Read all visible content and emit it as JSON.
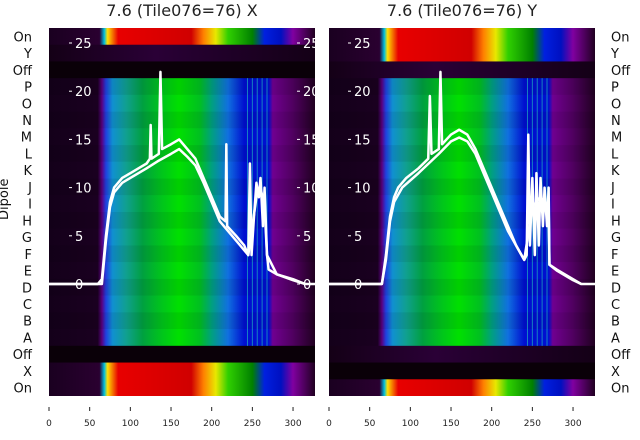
{
  "chart_data": {
    "type": "heatmap",
    "ylabel": "Dipole",
    "row_labels": [
      "On",
      "Y",
      "Off",
      "P",
      "O",
      "N",
      "M",
      "L",
      "K",
      "J",
      "I",
      "H",
      "G",
      "F",
      "E",
      "D",
      "C",
      "B",
      "A",
      "Off",
      "X",
      "On"
    ],
    "x_ticks": [
      "0",
      "50",
      "100",
      "150",
      "200",
      "250",
      "300"
    ],
    "x_tick_values": [
      0,
      50,
      100,
      150,
      200,
      250,
      300
    ],
    "xlim": [
      0,
      327
    ],
    "y_ticks": [
      "0",
      "5",
      "10",
      "15",
      "20",
      "25"
    ],
    "y_tick_values": [
      0,
      5,
      10,
      15,
      20,
      25
    ],
    "panels": [
      {
        "title": "7.6 (Tile076=76) X",
        "row_types": [
          "bright",
          "dark",
          "black",
          "main",
          "main",
          "main",
          "main",
          "main",
          "main",
          "main",
          "main",
          "main",
          "main",
          "main",
          "main",
          "main",
          "main",
          "main",
          "main",
          "black",
          "bright",
          "bright"
        ],
        "series": [
          {
            "name": "trace-1",
            "points": [
              [
                0,
                0
              ],
              [
                60,
                0
              ],
              [
                65,
                0.5
              ],
              [
                70,
                5
              ],
              [
                75,
                8.5
              ],
              [
                80,
                10
              ],
              [
                90,
                11
              ],
              [
                100,
                11.5
              ],
              [
                110,
                12
              ],
              [
                120,
                12.5
              ],
              [
                124,
                13
              ],
              [
                125,
                16.5
              ],
              [
                126,
                13
              ],
              [
                135,
                13.5
              ],
              [
                137,
                22
              ],
              [
                139,
                14
              ],
              [
                150,
                14.5
              ],
              [
                160,
                15
              ],
              [
                170,
                14
              ],
              [
                180,
                13
              ],
              [
                190,
                11
              ],
              [
                200,
                9
              ],
              [
                210,
                7
              ],
              [
                217,
                6.5
              ],
              [
                218,
                14.5
              ],
              [
                219,
                6
              ],
              [
                230,
                5
              ],
              [
                240,
                4
              ],
              [
                245,
                3
              ],
              [
                247,
                12.5
              ],
              [
                249,
                3
              ],
              [
                252,
                7
              ],
              [
                255,
                10.5
              ],
              [
                258,
                9
              ],
              [
                260,
                11
              ],
              [
                263,
                6
              ],
              [
                265,
                10
              ],
              [
                268,
                3
              ],
              [
                270,
                1.5
              ],
              [
                280,
                1
              ],
              [
                300,
                0.5
              ],
              [
                315,
                0
              ],
              [
                327,
                0
              ]
            ]
          },
          {
            "name": "trace-2",
            "points": [
              [
                0,
                0
              ],
              [
                65,
                0
              ],
              [
                70,
                4.5
              ],
              [
                75,
                8
              ],
              [
                80,
                9.5
              ],
              [
                90,
                10.5
              ],
              [
                100,
                11
              ],
              [
                120,
                12
              ],
              [
                135,
                12.8
              ],
              [
                150,
                13.5
              ],
              [
                160,
                14
              ],
              [
                170,
                13.2
              ],
              [
                180,
                12.3
              ],
              [
                190,
                10.5
              ],
              [
                200,
                8.5
              ],
              [
                210,
                6.5
              ],
              [
                230,
                4.5
              ],
              [
                245,
                3
              ],
              [
                250,
                6
              ],
              [
                255,
                9
              ],
              [
                260,
                10
              ],
              [
                265,
                8
              ],
              [
                268,
                3
              ],
              [
                280,
                1
              ],
              [
                300,
                0.4
              ],
              [
                315,
                0
              ]
            ]
          }
        ]
      },
      {
        "title": "7.6 (Tile076=76) Y",
        "row_types": [
          "bright",
          "bright",
          "dark",
          "main",
          "main",
          "main",
          "main",
          "main",
          "main",
          "main",
          "main",
          "main",
          "main",
          "main",
          "main",
          "main",
          "main",
          "main",
          "main",
          "dark",
          "black",
          "bright"
        ],
        "series": [
          {
            "name": "trace-1",
            "points": [
              [
                0,
                0
              ],
              [
                65,
                0
              ],
              [
                70,
                3
              ],
              [
                75,
                7
              ],
              [
                80,
                9
              ],
              [
                85,
                10
              ],
              [
                95,
                11
              ],
              [
                110,
                12
              ],
              [
                122,
                13
              ],
              [
                124,
                19.5
              ],
              [
                126,
                13.5
              ],
              [
                135,
                14
              ],
              [
                137,
                22
              ],
              [
                139,
                14.5
              ],
              [
                150,
                15.5
              ],
              [
                160,
                16
              ],
              [
                170,
                15.5
              ],
              [
                180,
                14
              ],
              [
                190,
                12
              ],
              [
                200,
                10
              ],
              [
                210,
                8
              ],
              [
                220,
                6
              ],
              [
                230,
                4
              ],
              [
                240,
                2.5
              ],
              [
                243,
                3
              ],
              [
                245,
                15.5
              ],
              [
                247,
                4
              ],
              [
                250,
                11
              ],
              [
                253,
                3
              ],
              [
                255,
                11.5
              ],
              [
                258,
                4
              ],
              [
                260,
                11
              ],
              [
                263,
                6
              ],
              [
                265,
                10
              ],
              [
                268,
                6
              ],
              [
                270,
                10
              ],
              [
                271,
                2
              ],
              [
                280,
                1.5
              ],
              [
                300,
                0.5
              ],
              [
                310,
                0
              ],
              [
                327,
                0
              ]
            ]
          },
          {
            "name": "trace-2",
            "points": [
              [
                0,
                0
              ],
              [
                65,
                0
              ],
              [
                70,
                2.5
              ],
              [
                75,
                6.5
              ],
              [
                80,
                8.5
              ],
              [
                90,
                10
              ],
              [
                110,
                11.5
              ],
              [
                135,
                13.5
              ],
              [
                150,
                14.8
              ],
              [
                160,
                15.2
              ],
              [
                170,
                14.8
              ],
              [
                180,
                13.5
              ],
              [
                190,
                11.5
              ],
              [
                200,
                9.5
              ],
              [
                220,
                5.5
              ],
              [
                240,
                2.5
              ],
              [
                250,
                8
              ],
              [
                260,
                9
              ],
              [
                270,
                8
              ],
              [
                271,
                2
              ],
              [
                280,
                1.4
              ],
              [
                300,
                0.4
              ],
              [
                310,
                0
              ]
            ]
          }
        ]
      }
    ]
  }
}
